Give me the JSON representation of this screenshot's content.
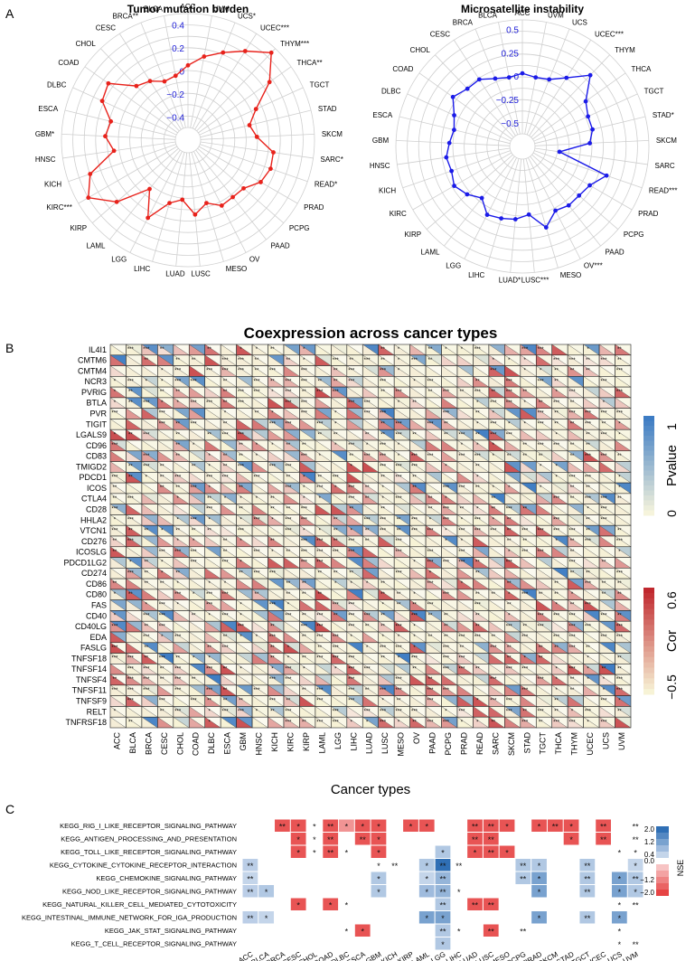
{
  "panel_labels": [
    "A",
    "B",
    "C"
  ],
  "colors": {
    "tmb_line": "#e8221b",
    "msi_line": "#1b1be8",
    "radar_ticks": "#2020d8",
    "heat_pos": "#c0282e",
    "heat_neg": "#f7f3d6",
    "pval_low": "#f6f4dc",
    "pval_high": "#3d7cc4",
    "nse_pos": "#2f6fb5",
    "nse_neg": "#e64444"
  },
  "chart_data": [
    {
      "type": "radar",
      "title": "Tumor mutation burden",
      "r_ticks": [
        "0.4",
        "0.2",
        "0",
        "−0.2",
        "−0.4"
      ],
      "rlim": [
        -0.6,
        0.5
      ],
      "categories": [
        "ACC",
        "UVM",
        "UCS*",
        "UCEC***",
        "THYM***",
        "THCA**",
        "TGCT",
        "STAD",
        "SKCM",
        "SARC*",
        "READ*",
        "PRAD",
        "PCPG",
        "PAAD",
        "OV",
        "MESO",
        "LUSC",
        "LUAD",
        "LIHC",
        "LGG",
        "LAML",
        "KIRP",
        "KIRC***",
        "KICH",
        "HNSC",
        "GBM*",
        "ESCA",
        "DLBC",
        "COAD",
        "CHOL",
        "CESC",
        "BRCA**",
        "BLCA"
      ],
      "values": [
        0.05,
        0.14,
        0.22,
        0.32,
        0.45,
        0.27,
        0.05,
        -0.05,
        0.0,
        0.15,
        0.16,
        0.13,
        0.04,
        0.03,
        0.04,
        -0.03,
        0.05,
        -0.08,
        -0.03,
        0.16,
        -0.06,
        0.22,
        0.4,
        0.3,
        0.05,
        0.12,
        0.09,
        0.22,
        0.25,
        0.05,
        0.01,
        -0.05,
        -0.03
      ]
    },
    {
      "type": "radar",
      "title": "Microsatellite instability",
      "r_ticks": [
        "0.5",
        "0.25",
        "0",
        "−0.25",
        "−0.5"
      ],
      "rlim": [
        -0.75,
        0.6
      ],
      "categories": [
        "ACC",
        "UVM",
        "UCS",
        "UCEC***",
        "THYM",
        "THCA",
        "TGCT",
        "STAD*",
        "SKCM",
        "SARC",
        "READ***",
        "PRAD",
        "PCPG",
        "PAAD",
        "OV***",
        "MESO",
        "LUSC***",
        "LUAD*",
        "LIHC",
        "LGG",
        "LAML",
        "KIRP",
        "KIRC",
        "KICH",
        "HNSC",
        "GBM",
        "ESCA",
        "DLBC",
        "COAD",
        "CHOL",
        "CESC",
        "BRCA",
        "BLCA"
      ],
      "values": [
        0.03,
        0.0,
        0.02,
        0.12,
        0.3,
        0.08,
        0.02,
        0.02,
        -0.03,
        -0.35,
        0.2,
        0.08,
        0.05,
        0.05,
        0.02,
        0.15,
        -0.02,
        0.03,
        0.05,
        0.07,
        -0.05,
        0.03,
        0.09,
        0.05,
        0.07,
        0.03,
        0.0,
        0.05,
        0.16,
        0.1,
        0.1,
        0.03,
        0.0
      ]
    },
    {
      "type": "heatmap",
      "title": "Coexpression across cancer types",
      "xlabel": "Cancer types",
      "x": [
        "ACC",
        "BLCA",
        "BRCA",
        "CESC",
        "CHOL",
        "COAD",
        "DLBC",
        "ESCA",
        "GBM",
        "HNSC",
        "KICH",
        "KIRC",
        "KIRP",
        "LAML",
        "LGG",
        "LIHC",
        "LUAD",
        "LUSC",
        "MESO",
        "OV",
        "PAAD",
        "PCPG",
        "PRAD",
        "READ",
        "SARC",
        "SKCM",
        "STAD",
        "TGCT",
        "THCA",
        "THYM",
        "UCEC",
        "UCS",
        "UVM"
      ],
      "y": [
        "IL4I1",
        "CMTM6",
        "CMTM4",
        "NCR3",
        "PVRIG",
        "BTLA",
        "PVR",
        "TIGIT",
        "LGALS9",
        "CD96",
        "CD83",
        "TMIGD2",
        "PDCD1",
        "ICOS",
        "CTLA4",
        "CD28",
        "HHLA2",
        "VTCN1",
        "CD276",
        "ICOSLG",
        "PDCD1LG2",
        "CD274",
        "CD86",
        "CD80",
        "FAS",
        "CD40",
        "CD40LG",
        "EDA",
        "FASLG",
        "TNFSF18",
        "TNFSF14",
        "TNFSF4",
        "TNFSF11",
        "TNFSF9",
        "RELT",
        "TNFRSF18"
      ],
      "legend_pvalue": {
        "title": "Pvalue",
        "ticks": [
          "1",
          "0"
        ]
      },
      "legend_cor": {
        "title": "Cor",
        "ticks": [
          "0.6",
          "−0.5"
        ]
      },
      "star_levels": [
        "*",
        "**",
        "***"
      ]
    },
    {
      "type": "heatmap",
      "legend_title": "NSE",
      "legend_ticks": [
        "2.0",
        "1.2",
        "0.4",
        "0.0",
        "−1.2",
        "−2.0"
      ],
      "x": [
        "ACC",
        "BLCA",
        "BRCA",
        "CESC",
        "CHOL",
        "COAD",
        "DLBC",
        "ESCA",
        "GBM",
        "KICH",
        "KIRP",
        "LAML",
        "LGG",
        "LIHC",
        "LUAD",
        "LUSC",
        "MESO",
        "PCPG",
        "PRAD",
        "SKCM",
        "STAD",
        "TGCT",
        "UCEC",
        "UCS",
        "UVM"
      ],
      "y": [
        "KEGG_RIG_I_LIKE_RECEPTOR_SIGNALING_PATHWAY",
        "KEGG_ANTIGEN_PROCESSING_AND_PRESENTATION",
        "KEGG_TOLL_LIKE_RECEPTOR_SIGNALING_PATHWAY",
        "KEGG_CYTOKINE_CYTOKINE_RECEPTOR_INTERACTION",
        "KEGG_CHEMOKINE_SIGNALING_PATHWAY",
        "KEGG_NOD_LIKE_RECEPTOR_SIGNALING_PATHWAY",
        "KEGG_NATURAL_KILLER_CELL_MEDIATED_CYTOTOXICITY",
        "KEGG_INTESTINAL_IMMUNE_NETWORK_FOR_IGA_PRODUCTION",
        "KEGG_JAK_STAT_SIGNALING_PATHWAY",
        "KEGG_T_CELL_RECEPTOR_SIGNALING_PATHWAY"
      ],
      "cells": [
        [
          0,
          "",
          0,
          "",
          -1.8,
          "**",
          -1.8,
          "*",
          0,
          "*",
          -1.8,
          "**",
          -1,
          "*",
          -1.8,
          "*",
          -1.8,
          "*",
          0,
          "",
          -1.8,
          "*",
          -1.8,
          "*",
          0,
          "",
          0,
          "",
          -1.8,
          "**",
          -1.8,
          "**",
          -1.8,
          "*",
          0,
          "",
          -1.8,
          "*",
          -1.8,
          "**",
          -1.8,
          "*",
          0,
          "",
          -1.8,
          "**",
          0,
          "",
          0,
          "**"
        ],
        [
          0,
          "",
          0,
          "",
          0,
          "",
          -1.8,
          "*",
          0,
          "*",
          -1.8,
          "**",
          0,
          "",
          -1.8,
          "**",
          -1.8,
          "*",
          0,
          "",
          0,
          "",
          0,
          "",
          0,
          "",
          0,
          "",
          -1.8,
          "**",
          -1.8,
          "**",
          0,
          "",
          0,
          "",
          0,
          "",
          0,
          "",
          -1.8,
          "*",
          0,
          "",
          -1.8,
          "**",
          0,
          "",
          0,
          "**"
        ],
        [
          0,
          "",
          0,
          "",
          0,
          "",
          -1.8,
          "*",
          0,
          "*",
          -1.8,
          "**",
          0,
          "*",
          0,
          "",
          -1.8,
          "*",
          0,
          "",
          0,
          "",
          0,
          "",
          0.6,
          "*",
          0,
          "",
          -1.8,
          "*",
          -1.8,
          "**",
          -1.8,
          "*",
          0,
          "",
          0,
          "",
          0,
          "",
          0,
          "",
          0,
          "",
          0,
          "",
          0,
          "*",
          0,
          "*"
        ],
        [
          0.5,
          "**",
          0,
          "",
          0,
          "",
          0,
          "",
          0,
          "",
          0,
          "",
          0,
          "",
          0,
          "",
          0,
          "*",
          0,
          "**",
          0,
          "",
          0.6,
          "*",
          2,
          "**",
          0,
          "**",
          0,
          "",
          0,
          "",
          0,
          "",
          0.6,
          "**",
          0.6,
          "*",
          0,
          "",
          0,
          "",
          0.6,
          "**",
          0,
          "",
          0,
          "",
          0.4,
          "*"
        ],
        [
          0.4,
          "**",
          0,
          "",
          0,
          "",
          0,
          "",
          0,
          "",
          0,
          "",
          0,
          "",
          0,
          "",
          0.6,
          "*",
          0,
          "",
          0,
          "",
          0.4,
          "*",
          0.9,
          "**",
          0,
          "",
          0,
          "",
          0,
          "",
          0,
          "",
          0.6,
          "**",
          1.2,
          "*",
          0,
          "",
          0,
          "",
          0.6,
          "**",
          0,
          "",
          1.2,
          "*",
          0.6,
          "**"
        ],
        [
          0.5,
          "**",
          0.6,
          "*",
          0,
          "",
          0,
          "",
          0,
          "",
          0,
          "",
          0,
          "",
          0,
          "",
          0.6,
          "*",
          0,
          "",
          0,
          "",
          0.8,
          "*",
          0.9,
          "**",
          0,
          "*",
          0,
          "",
          0,
          "",
          0,
          "",
          0,
          "",
          1.2,
          "*",
          0,
          "",
          0,
          "",
          0.6,
          "**",
          0,
          "",
          1.2,
          "*",
          0.6,
          "*"
        ],
        [
          0,
          "",
          0,
          "",
          0,
          "",
          -1.8,
          "*",
          0,
          "",
          -1.8,
          "*",
          0,
          "*",
          0,
          "",
          0,
          "",
          0,
          "",
          0,
          "",
          0,
          "",
          0.6,
          "**",
          0,
          "",
          -1.8,
          "**",
          -1.8,
          "**",
          0,
          "",
          0,
          "",
          0,
          "",
          0,
          "",
          0,
          "",
          0,
          "",
          0,
          "",
          0,
          "*",
          0,
          "**"
        ],
        [
          0.5,
          "**",
          0.4,
          "*",
          0,
          "",
          0,
          "",
          0,
          "",
          0,
          "",
          0,
          "",
          0,
          "",
          0,
          "",
          0,
          "",
          0,
          "",
          1.2,
          "*",
          1.2,
          "*",
          0,
          "",
          0,
          "",
          0,
          "",
          0,
          "",
          0,
          "",
          1.2,
          "*",
          0,
          "",
          0,
          "",
          0.6,
          "**",
          0,
          "",
          1.2,
          "*",
          0,
          ""
        ],
        [
          0,
          "",
          0,
          "",
          0,
          "",
          0,
          "",
          0,
          "",
          0,
          "",
          0,
          "*",
          -1.8,
          "*",
          0,
          "",
          0,
          "",
          0,
          "",
          0,
          "",
          0.6,
          "**",
          0,
          "*",
          0,
          "",
          -1.8,
          "**",
          0,
          "",
          0,
          "**",
          0,
          "",
          0,
          "",
          0,
          "",
          0,
          "",
          0,
          "",
          0,
          "*",
          0,
          ""
        ],
        [
          0,
          "",
          0,
          "",
          0,
          "",
          0,
          "",
          0,
          "",
          0,
          "",
          0,
          "",
          0,
          "",
          0,
          "",
          0,
          "",
          0,
          "",
          0,
          "",
          0.6,
          "*",
          0,
          "",
          0,
          "",
          0,
          "",
          0,
          "",
          0,
          "",
          0,
          "",
          0,
          "",
          0,
          "",
          0,
          "",
          0,
          "",
          0,
          "*",
          0,
          "**"
        ]
      ]
    }
  ]
}
